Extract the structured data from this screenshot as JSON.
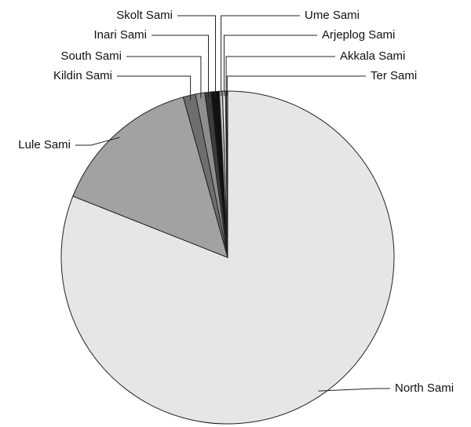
{
  "chart_data": {
    "type": "pie",
    "categories": [
      "North Sami",
      "Lule Sami",
      "Kildin Sami",
      "South Sami",
      "Inari Sami",
      "Skolt Sami",
      "Ume Sami",
      "Arjeplog Sami",
      "Akkala Sami",
      "Ter Sami"
    ],
    "values": [
      81,
      14.7,
      1.2,
      0.9,
      0.6,
      0.8,
      0.3,
      0.3,
      0.1,
      0.1
    ],
    "colors": [
      "#e6e6e6",
      "#a2a2a2",
      "#6e6e6e",
      "#8e8e8e",
      "#3c3c3c",
      "#111111",
      "#c8c8c8",
      "#dcdcdc",
      "#9a9a9a",
      "#ffffff"
    ]
  }
}
